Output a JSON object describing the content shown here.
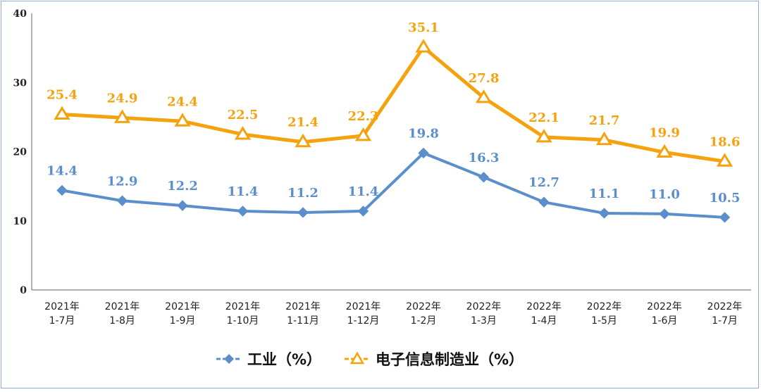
{
  "chart_data": {
    "type": "line",
    "categories": [
      [
        "2021年",
        "1-7月"
      ],
      [
        "2021年",
        "1-8月"
      ],
      [
        "2021年",
        "1-9月"
      ],
      [
        "2021年",
        "1-10月"
      ],
      [
        "2021年",
        "1-11月"
      ],
      [
        "2021年",
        "1-12月"
      ],
      [
        "2022年",
        "1-2月"
      ],
      [
        "2022年",
        "1-3月"
      ],
      [
        "2022年",
        "1-4月"
      ],
      [
        "2022年",
        "1-5月"
      ],
      [
        "2022年",
        "1-6月"
      ],
      [
        "2022年",
        "1-7月"
      ]
    ],
    "series": [
      {
        "name": "工业（%）",
        "color": "#5b8fcb",
        "marker": "diamond",
        "values": [
          14.4,
          12.9,
          12.2,
          11.4,
          11.2,
          11.4,
          19.8,
          16.3,
          12.7,
          11.1,
          11.0,
          10.5
        ],
        "labels": [
          "14.4",
          "12.9",
          "12.2",
          "11.4",
          "11.2",
          "11.4",
          "19.8",
          "16.3",
          "12.7",
          "11.1",
          "11.0",
          "10.5"
        ]
      },
      {
        "name": "电子信息制造业（%）",
        "color": "#f5a20f",
        "marker": "triangle",
        "values": [
          25.4,
          24.9,
          24.4,
          22.5,
          21.4,
          22.3,
          35.1,
          27.8,
          22.1,
          21.7,
          19.9,
          18.6
        ],
        "labels": [
          "25.4",
          "24.9",
          "24.4",
          "22.5",
          "21.4",
          "22.3",
          "35.1",
          "27.8",
          "22.1",
          "21.7",
          "19.9",
          "18.6"
        ]
      }
    ],
    "ylim": [
      0,
      40
    ],
    "yticks": [
      "0",
      "10",
      "20",
      "30",
      "40"
    ],
    "ytick_values": [
      0,
      10,
      20,
      30,
      40
    ],
    "title": "",
    "xlabel": "",
    "ylabel": "",
    "grid": false,
    "legend_position": "bottom-center"
  }
}
